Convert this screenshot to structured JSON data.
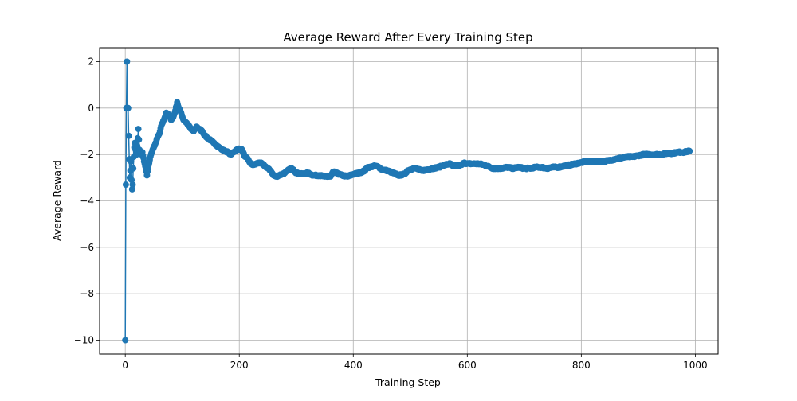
{
  "chart_data": {
    "type": "line",
    "title": "Average Reward After Every Training Step",
    "xlabel": "Training Step",
    "ylabel": "Average Reward",
    "xlim": [
      -45,
      1040
    ],
    "ylim": [
      -10.6,
      2.6
    ],
    "xticks": [
      0,
      200,
      400,
      600,
      800,
      1000
    ],
    "xtick_labels": [
      "0",
      "200",
      "400",
      "600",
      "800",
      "1000"
    ],
    "yticks": [
      -10,
      -8,
      -6,
      -4,
      -2,
      0,
      2
    ],
    "ytick_labels": [
      "−10",
      "−8",
      "−6",
      "−4",
      "−2",
      "0",
      "2"
    ],
    "grid": true,
    "legend": "none",
    "color": "#1f77b4",
    "marker": "circle",
    "series": [
      {
        "anchors": [
          [
            0,
            -10.0
          ],
          [
            1,
            -3.3
          ],
          [
            2,
            0.0
          ],
          [
            3,
            2.0
          ],
          [
            4,
            0.0
          ],
          [
            5,
            0.0
          ],
          [
            6,
            -1.2
          ],
          [
            7,
            -2.2
          ],
          [
            8,
            -3.0
          ],
          [
            9,
            -2.7
          ],
          [
            10,
            -2.3
          ],
          [
            11,
            -3.1
          ],
          [
            12,
            -3.5
          ],
          [
            13,
            -3.3
          ],
          [
            14,
            -2.6
          ],
          [
            15,
            -2.1
          ],
          [
            16,
            -1.7
          ],
          [
            17,
            -1.5
          ],
          [
            18,
            -1.8
          ],
          [
            20,
            -2.0
          ],
          [
            22,
            -1.3
          ],
          [
            23,
            -0.9
          ],
          [
            25,
            -1.8
          ],
          [
            28,
            -2.0
          ],
          [
            30,
            -1.9
          ],
          [
            33,
            -2.3
          ],
          [
            36,
            -2.6
          ],
          [
            38,
            -2.9
          ],
          [
            40,
            -2.6
          ],
          [
            44,
            -2.1
          ],
          [
            48,
            -1.8
          ],
          [
            52,
            -1.6
          ],
          [
            56,
            -1.3
          ],
          [
            60,
            -1.1
          ],
          [
            64,
            -0.7
          ],
          [
            68,
            -0.5
          ],
          [
            72,
            -0.2
          ],
          [
            76,
            -0.3
          ],
          [
            80,
            -0.5
          ],
          [
            84,
            -0.4
          ],
          [
            88,
            -0.1
          ],
          [
            91,
            0.25
          ],
          [
            94,
            0.0
          ],
          [
            98,
            -0.2
          ],
          [
            102,
            -0.5
          ],
          [
            106,
            -0.6
          ],
          [
            110,
            -0.7
          ],
          [
            115,
            -0.9
          ],
          [
            120,
            -1.0
          ],
          [
            125,
            -0.8
          ],
          [
            130,
            -0.9
          ],
          [
            135,
            -1.0
          ],
          [
            140,
            -1.2
          ],
          [
            145,
            -1.3
          ],
          [
            150,
            -1.4
          ],
          [
            155,
            -1.5
          ],
          [
            160,
            -1.6
          ],
          [
            165,
            -1.7
          ],
          [
            170,
            -1.8
          ],
          [
            175,
            -1.85
          ],
          [
            180,
            -1.9
          ],
          [
            185,
            -2.0
          ],
          [
            190,
            -1.9
          ],
          [
            195,
            -1.8
          ],
          [
            200,
            -1.75
          ],
          [
            205,
            -1.8
          ],
          [
            210,
            -2.1
          ],
          [
            215,
            -2.2
          ],
          [
            220,
            -2.4
          ],
          [
            225,
            -2.45
          ],
          [
            230,
            -2.4
          ],
          [
            235,
            -2.35
          ],
          [
            240,
            -2.4
          ],
          [
            245,
            -2.5
          ],
          [
            250,
            -2.6
          ],
          [
            255,
            -2.7
          ],
          [
            260,
            -2.9
          ],
          [
            265,
            -2.95
          ],
          [
            270,
            -2.9
          ],
          [
            275,
            -2.85
          ],
          [
            280,
            -2.8
          ],
          [
            285,
            -2.7
          ],
          [
            290,
            -2.6
          ],
          [
            295,
            -2.65
          ],
          [
            300,
            -2.8
          ],
          [
            310,
            -2.85
          ],
          [
            320,
            -2.8
          ],
          [
            330,
            -2.9
          ],
          [
            340,
            -2.9
          ],
          [
            350,
            -2.95
          ],
          [
            360,
            -2.95
          ],
          [
            365,
            -2.75
          ],
          [
            370,
            -2.8
          ],
          [
            380,
            -2.9
          ],
          [
            390,
            -2.95
          ],
          [
            400,
            -2.85
          ],
          [
            410,
            -2.8
          ],
          [
            420,
            -2.7
          ],
          [
            425,
            -2.55
          ],
          [
            430,
            -2.55
          ],
          [
            435,
            -2.5
          ],
          [
            440,
            -2.5
          ],
          [
            445,
            -2.55
          ],
          [
            450,
            -2.65
          ],
          [
            460,
            -2.7
          ],
          [
            470,
            -2.8
          ],
          [
            480,
            -2.9
          ],
          [
            490,
            -2.85
          ],
          [
            495,
            -2.7
          ],
          [
            500,
            -2.65
          ],
          [
            505,
            -2.6
          ],
          [
            510,
            -2.6
          ],
          [
            515,
            -2.65
          ],
          [
            520,
            -2.7
          ],
          [
            530,
            -2.65
          ],
          [
            540,
            -2.6
          ],
          [
            550,
            -2.55
          ],
          [
            560,
            -2.45
          ],
          [
            570,
            -2.4
          ],
          [
            575,
            -2.5
          ],
          [
            580,
            -2.5
          ],
          [
            590,
            -2.45
          ],
          [
            595,
            -2.35
          ],
          [
            600,
            -2.4
          ],
          [
            610,
            -2.4
          ],
          [
            620,
            -2.4
          ],
          [
            630,
            -2.45
          ],
          [
            640,
            -2.55
          ],
          [
            645,
            -2.6
          ],
          [
            650,
            -2.6
          ],
          [
            660,
            -2.6
          ],
          [
            670,
            -2.55
          ],
          [
            680,
            -2.6
          ],
          [
            690,
            -2.55
          ],
          [
            700,
            -2.6
          ],
          [
            710,
            -2.6
          ],
          [
            720,
            -2.55
          ],
          [
            730,
            -2.55
          ],
          [
            740,
            -2.6
          ],
          [
            750,
            -2.55
          ],
          [
            760,
            -2.55
          ],
          [
            770,
            -2.5
          ],
          [
            780,
            -2.45
          ],
          [
            790,
            -2.4
          ],
          [
            800,
            -2.35
          ],
          [
            810,
            -2.3
          ],
          [
            820,
            -2.3
          ],
          [
            830,
            -2.3
          ],
          [
            840,
            -2.3
          ],
          [
            850,
            -2.25
          ],
          [
            860,
            -2.2
          ],
          [
            870,
            -2.15
          ],
          [
            880,
            -2.1
          ],
          [
            890,
            -2.1
          ],
          [
            900,
            -2.05
          ],
          [
            910,
            -2.0
          ],
          [
            920,
            -2.0
          ],
          [
            930,
            -2.0
          ],
          [
            940,
            -2.0
          ],
          [
            950,
            -1.95
          ],
          [
            960,
            -1.95
          ],
          [
            970,
            -1.9
          ],
          [
            980,
            -1.9
          ],
          [
            990,
            -1.85
          ]
        ]
      }
    ]
  }
}
